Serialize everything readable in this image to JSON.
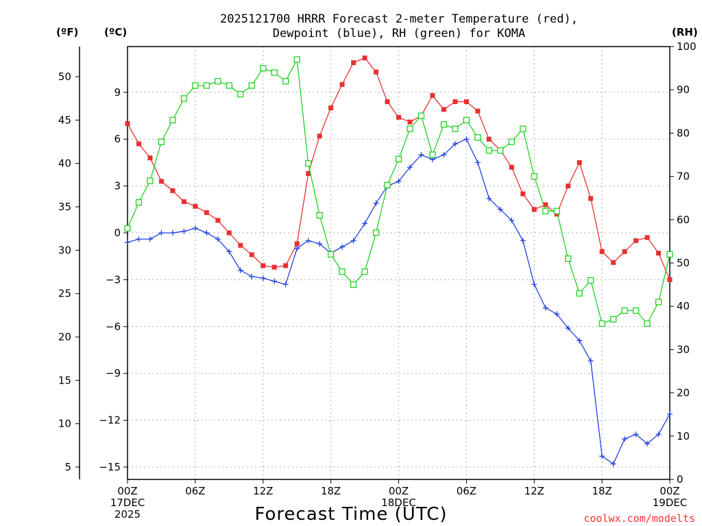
{
  "title_line1": "2025121700 HRRR Forecast 2-meter Temperature (red),",
  "title_line2": "Dewpoint (blue), RH (green) for KOMA",
  "unit_f": "(ºF)",
  "unit_c": "(ºC)",
  "unit_rh": "(RH)",
  "xlabel": "Forecast Time (UTC)",
  "credit": "coolwx.com/modelts",
  "colors": {
    "temperature": "#e83030",
    "dewpoint": "#2040e0",
    "rh": "#20d020",
    "grid": "#aaaaaa"
  },
  "chart_data": {
    "type": "line",
    "x_hours": [
      0,
      1,
      2,
      3,
      4,
      5,
      6,
      7,
      8,
      9,
      10,
      11,
      12,
      13,
      14,
      15,
      16,
      17,
      18,
      19,
      20,
      21,
      22,
      23,
      24,
      25,
      26,
      27,
      28,
      29,
      30,
      31,
      32,
      33,
      34,
      35,
      36,
      37,
      38,
      39,
      40,
      41,
      42,
      43,
      44,
      45,
      46,
      47,
      48
    ],
    "xlim": [
      0,
      48
    ],
    "x_ticks": [
      {
        "hour": 0,
        "lines": [
          "00Z",
          "17DEC",
          "2025"
        ]
      },
      {
        "hour": 6,
        "lines": [
          "06Z"
        ]
      },
      {
        "hour": 12,
        "lines": [
          "12Z"
        ]
      },
      {
        "hour": 18,
        "lines": [
          "18Z"
        ]
      },
      {
        "hour": 24,
        "lines": [
          "00Z",
          "18DEC"
        ]
      },
      {
        "hour": 30,
        "lines": [
          "06Z"
        ]
      },
      {
        "hour": 36,
        "lines": [
          "12Z"
        ]
      },
      {
        "hour": 42,
        "lines": [
          "18Z"
        ]
      },
      {
        "hour": 48,
        "lines": [
          "00Z",
          "19DEC"
        ]
      }
    ],
    "y_c_lim": [
      -16,
      12
    ],
    "y_c_ticks": [
      "9",
      "6",
      "3",
      "0",
      "−3",
      "−6",
      "−9",
      "−12",
      "−15"
    ],
    "y_c_tick_values": [
      9,
      6,
      3,
      0,
      -3,
      -6,
      -9,
      -12,
      -15
    ],
    "y_f_ticks": [
      "50",
      "45",
      "40",
      "35",
      "30",
      "25",
      "20",
      "15",
      "10",
      "5"
    ],
    "y_f_tick_values": [
      50,
      45,
      40,
      35,
      30,
      25,
      20,
      15,
      10,
      5
    ],
    "y_rh_lim": [
      0,
      100
    ],
    "y_rh_ticks": [
      "100",
      "90",
      "80",
      "70",
      "60",
      "50",
      "40",
      "30",
      "20",
      "10",
      "0"
    ],
    "y_rh_tick_values": [
      100,
      90,
      80,
      70,
      60,
      50,
      40,
      30,
      20,
      10,
      0
    ],
    "grid": true,
    "series": [
      {
        "key": "temperature",
        "axis": "c",
        "marker": "filled-square",
        "values": [
          7.0,
          5.7,
          4.8,
          3.3,
          2.7,
          2.0,
          1.7,
          1.3,
          0.8,
          0.0,
          -0.8,
          -1.4,
          -2.1,
          -2.2,
          -2.1,
          -0.7,
          3.8,
          6.2,
          8.0,
          9.5,
          10.9,
          11.2,
          10.3,
          8.4,
          7.4,
          7.1,
          7.5,
          8.8,
          7.9,
          8.4,
          8.4,
          7.8,
          6.0,
          5.3,
          4.2,
          2.5,
          1.5,
          1.8,
          1.2,
          3.0,
          4.5,
          2.2,
          -1.2,
          -1.9,
          -1.2,
          -0.5,
          -0.3,
          -1.3,
          -3.0
        ]
      },
      {
        "key": "dewpoint",
        "axis": "c",
        "marker": "plus",
        "values": [
          -0.6,
          -0.4,
          -0.4,
          -0.0,
          -0.0,
          0.1,
          0.3,
          -0.0,
          -0.4,
          -1.2,
          -2.4,
          -2.8,
          -2.9,
          -3.1,
          -3.3,
          -1.0,
          -0.5,
          -0.7,
          -1.3,
          -0.9,
          -0.5,
          0.6,
          1.9,
          3.0,
          3.3,
          4.2,
          5.0,
          4.7,
          5.0,
          5.7,
          6.0,
          4.5,
          2.2,
          1.5,
          0.8,
          -0.5,
          -3.3,
          -4.8,
          -5.2,
          -6.1,
          -6.9,
          -8.2,
          -14.3,
          -14.8,
          -13.2,
          -12.9,
          -13.5,
          -12.9,
          -11.6
        ]
      },
      {
        "key": "rh",
        "axis": "rh",
        "marker": "open-square",
        "values": [
          58,
          64,
          69,
          78,
          83,
          88,
          91,
          91,
          92,
          91,
          89,
          91,
          95,
          94,
          92,
          97,
          73,
          61,
          52,
          48,
          45,
          48,
          57,
          68,
          74,
          81,
          84,
          75,
          82,
          81,
          83,
          79,
          76,
          76,
          78,
          81,
          70,
          62,
          62,
          51,
          43,
          46,
          36,
          37,
          39,
          39,
          36,
          41,
          52
        ]
      }
    ]
  }
}
